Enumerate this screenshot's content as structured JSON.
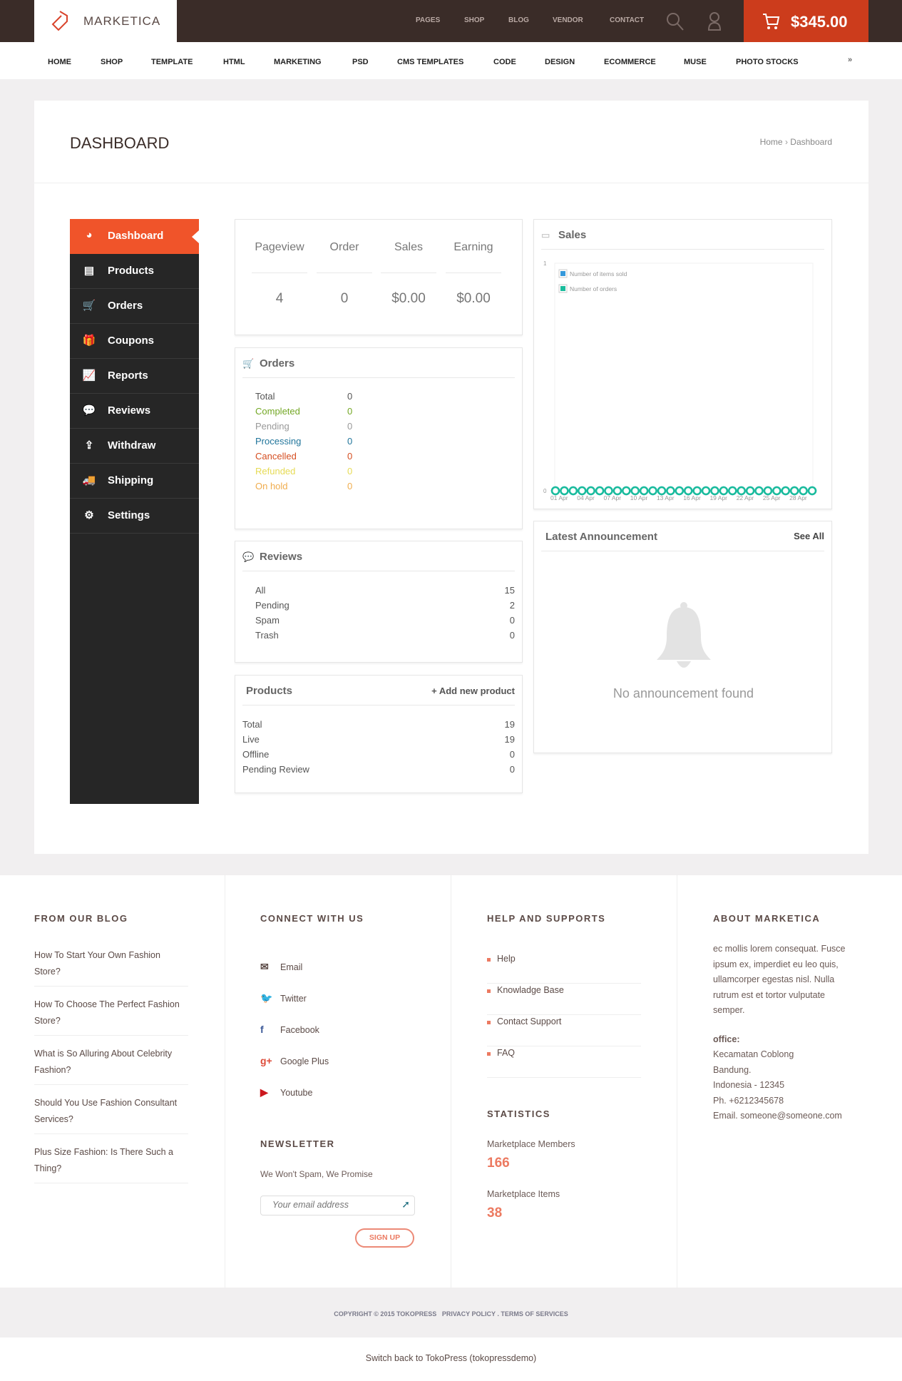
{
  "header": {
    "logo": "MARKETICA",
    "links": [
      "PAGES",
      "SHOP",
      "BLOG",
      "VENDOR",
      "CONTACT"
    ],
    "cart_total": "$345.00",
    "accent": "#cc3c1c"
  },
  "nav": [
    "HOME",
    "SHOP",
    "TEMPLATE",
    "HTML",
    "MARKETING",
    "PSD",
    "CMS TEMPLATES",
    "CODE",
    "DESIGN",
    "ECOMMERCE",
    "MUSE",
    "PHOTO STOCKS"
  ],
  "page": {
    "title": "DASHBOARD",
    "breadcrumb": [
      "Home",
      "Dashboard"
    ],
    "breadcrumb_sep": "›"
  },
  "sidebar": {
    "active_color": "#f0542a",
    "items": [
      {
        "label": "Dashboard",
        "icon": "dashboard-icon",
        "glyph": "◕"
      },
      {
        "label": "Products",
        "icon": "briefcase-icon",
        "glyph": "▤"
      },
      {
        "label": "Orders",
        "icon": "cart-icon",
        "glyph": "🛒"
      },
      {
        "label": "Coupons",
        "icon": "gift-icon",
        "glyph": "🎁"
      },
      {
        "label": "Reports",
        "icon": "chart-icon",
        "glyph": "📈"
      },
      {
        "label": "Reviews",
        "icon": "comments-icon",
        "glyph": "💬"
      },
      {
        "label": "Withdraw",
        "icon": "upload-icon",
        "glyph": "⇪"
      },
      {
        "label": "Shipping",
        "icon": "truck-icon",
        "glyph": "🚚"
      },
      {
        "label": "Settings",
        "icon": "gear-icon",
        "glyph": "⚙"
      }
    ]
  },
  "stats": [
    {
      "label": "Pageview",
      "value": "4"
    },
    {
      "label": "Order",
      "value": "0"
    },
    {
      "label": "Sales",
      "value": "$0.00"
    },
    {
      "label": "Earning",
      "value": "$0.00"
    }
  ],
  "orders": {
    "title": "Orders",
    "rows": [
      {
        "label": "Total",
        "value": "0",
        "color": "#555555"
      },
      {
        "label": "Completed",
        "value": "0",
        "color": "#73a724"
      },
      {
        "label": "Pending",
        "value": "0",
        "color": "#999999"
      },
      {
        "label": "Processing",
        "value": "0",
        "color": "#21759b"
      },
      {
        "label": "Cancelled",
        "value": "0",
        "color": "#d54e21"
      },
      {
        "label": "Refunded",
        "value": "0",
        "color": "#e6db55"
      },
      {
        "label": "On hold",
        "value": "0",
        "color": "#f0ad4e"
      }
    ]
  },
  "reviews": {
    "title": "Reviews",
    "rows": [
      {
        "label": "All",
        "value": "15"
      },
      {
        "label": "Pending",
        "value": "2"
      },
      {
        "label": "Spam",
        "value": "0"
      },
      {
        "label": "Trash",
        "value": "0"
      }
    ]
  },
  "products": {
    "title": "Products",
    "add_label": "+ Add new product",
    "rows": [
      {
        "label": "Total",
        "value": "19"
      },
      {
        "label": "Live",
        "value": "19"
      },
      {
        "label": "Offline",
        "value": "0"
      },
      {
        "label": "Pending Review",
        "value": "0"
      }
    ]
  },
  "sales": {
    "title": "Sales",
    "chart_data": {
      "type": "line",
      "ylim": [
        0,
        1
      ],
      "yticks": [
        "0",
        "1"
      ],
      "x": [
        "01 Apr",
        "02 Apr",
        "03 Apr",
        "04 Apr",
        "05 Apr",
        "06 Apr",
        "07 Apr",
        "08 Apr",
        "09 Apr",
        "10 Apr",
        "11 Apr",
        "12 Apr",
        "13 Apr",
        "14 Apr",
        "15 Apr",
        "16 Apr",
        "17 Apr",
        "18 Apr",
        "19 Apr",
        "20 Apr",
        "21 Apr",
        "22 Apr",
        "23 Apr",
        "24 Apr",
        "25 Apr",
        "26 Apr",
        "27 Apr",
        "28 Apr",
        "29 Apr",
        "30 Apr"
      ],
      "xtick_labels": [
        "01 Apr",
        "04 Apr",
        "07 Apr",
        "10 Apr",
        "13 Apr",
        "16 Apr",
        "19 Apr",
        "22 Apr",
        "25 Apr",
        "28 Apr"
      ],
      "legend": "top-left",
      "series": [
        {
          "name": "Number of items sold",
          "color": "#3498db",
          "values": [
            0,
            0,
            0,
            0,
            0,
            0,
            0,
            0,
            0,
            0,
            0,
            0,
            0,
            0,
            0,
            0,
            0,
            0,
            0,
            0,
            0,
            0,
            0,
            0,
            0,
            0,
            0,
            0,
            0,
            0
          ]
        },
        {
          "name": "Number of orders",
          "color": "#1abc9c",
          "values": [
            0,
            0,
            0,
            0,
            0,
            0,
            0,
            0,
            0,
            0,
            0,
            0,
            0,
            0,
            0,
            0,
            0,
            0,
            0,
            0,
            0,
            0,
            0,
            0,
            0,
            0,
            0,
            0,
            0,
            0
          ]
        }
      ]
    }
  },
  "announcement": {
    "title": "Latest Announcement",
    "see_all": "See All",
    "empty": "No announcement found"
  },
  "footer": {
    "blog": {
      "title": "FROM OUR BLOG",
      "items": [
        "How To Start Your Own Fashion Store?",
        "How To Choose The Perfect Fashion Store?",
        "What is So Alluring About Celebrity Fashion?",
        "Should You Use Fashion Consultant Services?",
        "Plus Size Fashion: Is There Such a Thing?"
      ]
    },
    "connect": {
      "title": "CONNECT WITH US",
      "items": [
        {
          "label": "Email",
          "icon": "email-icon",
          "glyph": "✉",
          "color": "#5b4a46"
        },
        {
          "label": "Twitter",
          "icon": "twitter-icon",
          "glyph": "🐦",
          "color": "#2aa9e0"
        },
        {
          "label": "Facebook",
          "icon": "facebook-icon",
          "glyph": "f",
          "color": "#3b5998"
        },
        {
          "label": "Google Plus",
          "icon": "google-plus-icon",
          "glyph": "g+",
          "color": "#dd4b39"
        },
        {
          "label": "Youtube",
          "icon": "youtube-icon",
          "glyph": "▶",
          "color": "#cc181e"
        }
      ]
    },
    "newsletter": {
      "title": "NEWSLETTER",
      "text": "We Won't Spam, We Promise",
      "placeholder": "Your email address",
      "button": "SIGN UP"
    },
    "help": {
      "title": "HELP AND SUPPORTS",
      "items": [
        "Help",
        "Knowladge Base",
        "Contact Support",
        "FAQ"
      ]
    },
    "statistics": {
      "title": "STATISTICS",
      "items": [
        {
          "label": "Marketplace Members",
          "value": "166"
        },
        {
          "label": "Marketplace Items",
          "value": "38"
        }
      ]
    },
    "about": {
      "title": "ABOUT MARKETICA",
      "text": "ec mollis lorem consequat. Fusce ipsum ex, imperdiet eu leo quis, ullamcorper egestas nisl. Nulla rutrum est et tortor vulputate semper.",
      "office_label": "office:",
      "office_lines": [
        "Kecamatan Coblong",
        "Bandung.",
        "Indonesia - 12345",
        "Ph. +6212345678",
        "Email. someone@someone.com"
      ]
    },
    "copyright": "COPYRIGHT © 2015 TOKOPRESS",
    "policy": "PRIVACY POLICY . TERMS OF SERVICES",
    "switch_back": "Switch back to TokoPress (tokopressdemo)"
  }
}
